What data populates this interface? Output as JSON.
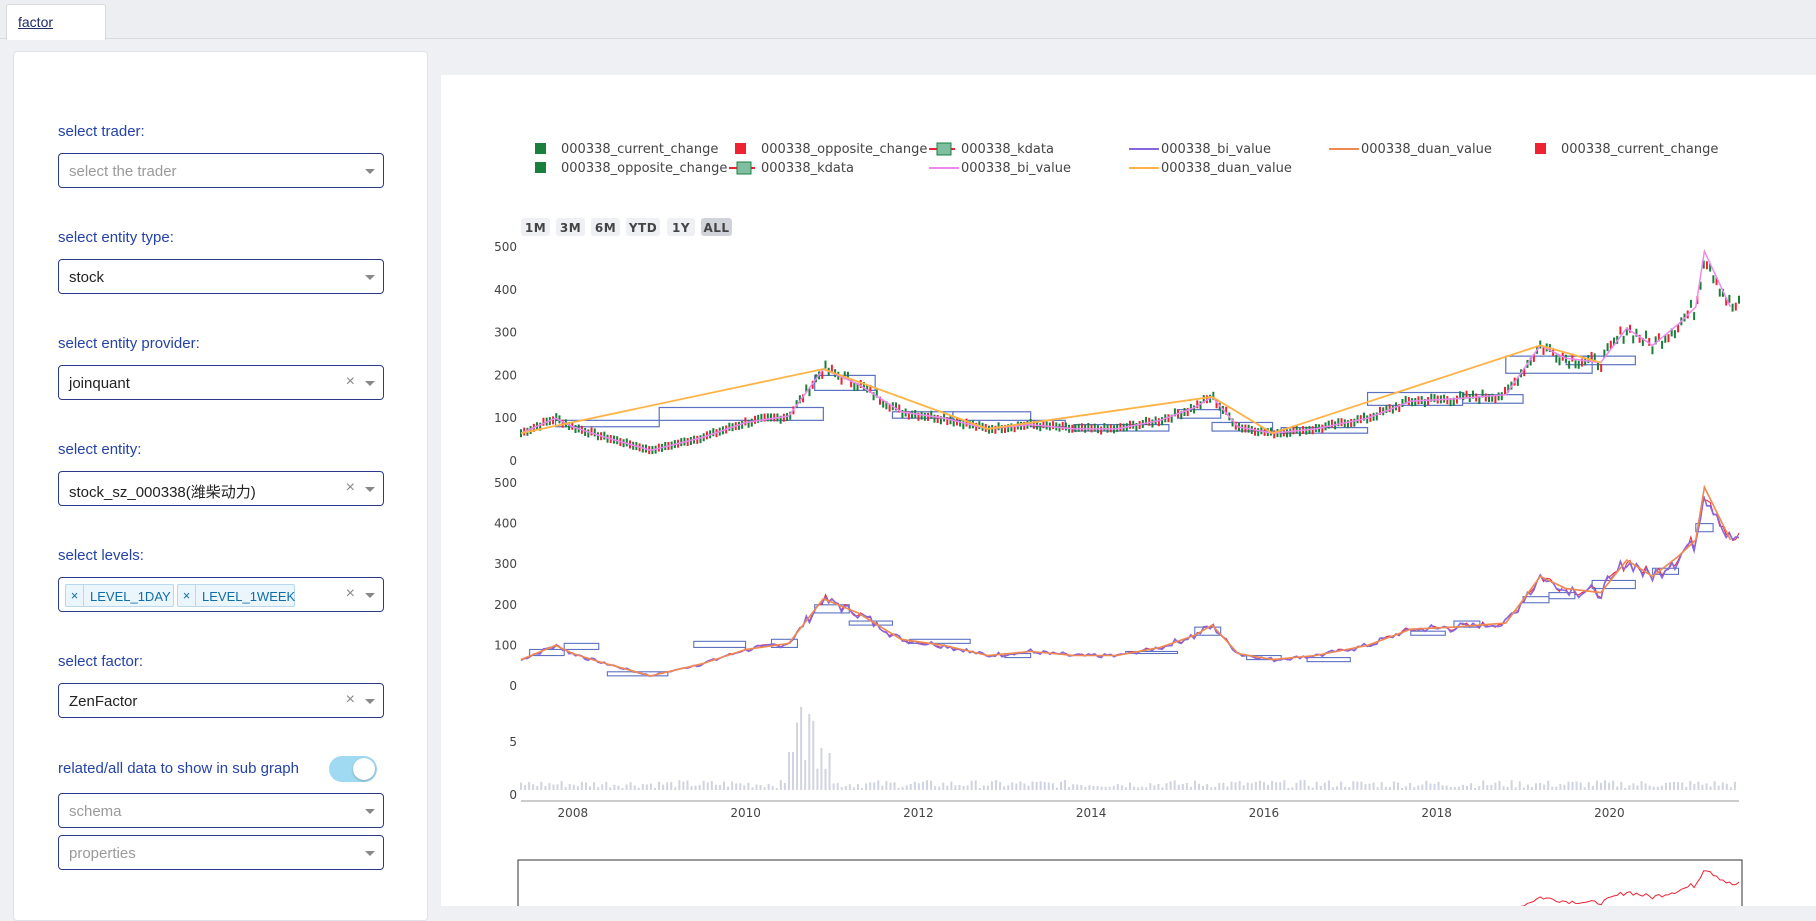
{
  "tabs": [
    {
      "label": "factor"
    }
  ],
  "form": {
    "trader": {
      "label": "select trader:",
      "placeholder": "select the trader"
    },
    "entity_type": {
      "label": "select entity type:",
      "value": "stock"
    },
    "entity_provider": {
      "label": "select entity provider:",
      "value": "joinquant",
      "clear": "×"
    },
    "entity": {
      "label": "select entity:",
      "value": "stock_sz_000338(潍柴动力)",
      "clear": "×"
    },
    "levels": {
      "label": "select levels:",
      "tags": [
        "LEVEL_1DAY",
        "LEVEL_1WEEK"
      ],
      "tag_remove": "×",
      "clear": "×"
    },
    "factor": {
      "label": "select factor:",
      "value": "ZenFactor",
      "clear": "×"
    },
    "subgraph": {
      "label": "related/all data to show in sub graph",
      "toggle_on": true
    },
    "schema": {
      "placeholder": "schema"
    },
    "properties": {
      "placeholder": "properties"
    }
  },
  "colors": {
    "increasing": "#1a7f3c",
    "decreasing": "#ee2233",
    "bi_value_1": "#ee88ee",
    "duan_value_1": "#ffb347",
    "bi_value_2": "#8866dd",
    "duan_value_2": "#f08850",
    "box": "#5b72c2",
    "volume": "#d0d3e0",
    "accent": "#2442a8"
  },
  "chart": {
    "range_buttons": [
      "1M",
      "3M",
      "6M",
      "YTD",
      "1Y",
      "ALL"
    ],
    "active_range": "ALL",
    "legend": [
      "000338_current_change",
      "000338_opposite_change",
      "000338_kdata",
      "000338_bi_value",
      "000338_duan_value",
      "000338_current_change",
      "000338_opposite_change",
      "000338_kdata",
      "000338_bi_value",
      "000338_duan_value"
    ],
    "panel1_yticks": [
      "500",
      "400",
      "300",
      "200",
      "100",
      "0"
    ],
    "panel2_yticks": [
      "500",
      "400",
      "300",
      "200",
      "100",
      "0"
    ],
    "panel3_yticks": [
      "5",
      "0"
    ],
    "xticks": [
      "2008",
      "2010",
      "2012",
      "2014",
      "2016",
      "2018",
      "2020"
    ]
  },
  "chart_data": {
    "type": "line",
    "title": "",
    "x": [
      2007.4,
      2007.8,
      2008.0,
      2008.3,
      2008.9,
      2009.5,
      2010.0,
      2010.5,
      2010.9,
      2011.3,
      2011.8,
      2012.3,
      2012.8,
      2013.3,
      2013.8,
      2014.3,
      2014.8,
      2015.2,
      2015.4,
      2015.7,
      2016.1,
      2016.6,
      2017.2,
      2017.7,
      2018.2,
      2018.8,
      2019.2,
      2019.5,
      2019.9,
      2020.2,
      2020.5,
      2020.8,
      2021.0,
      2021.1,
      2021.4
    ],
    "series": [
      {
        "name": "000338_kdata",
        "values": [
          65,
          100,
          80,
          60,
          25,
          55,
          90,
          105,
          215,
          180,
          115,
          100,
          75,
          85,
          75,
          75,
          95,
          125,
          150,
          80,
          65,
          75,
          100,
          140,
          145,
          155,
          270,
          240,
          230,
          310,
          270,
          320,
          360,
          490,
          360
        ]
      }
    ],
    "xlabel": "",
    "ylabel": "",
    "ylim": [
      0,
      500
    ],
    "xlim": [
      2007.4,
      2021.5
    ]
  }
}
